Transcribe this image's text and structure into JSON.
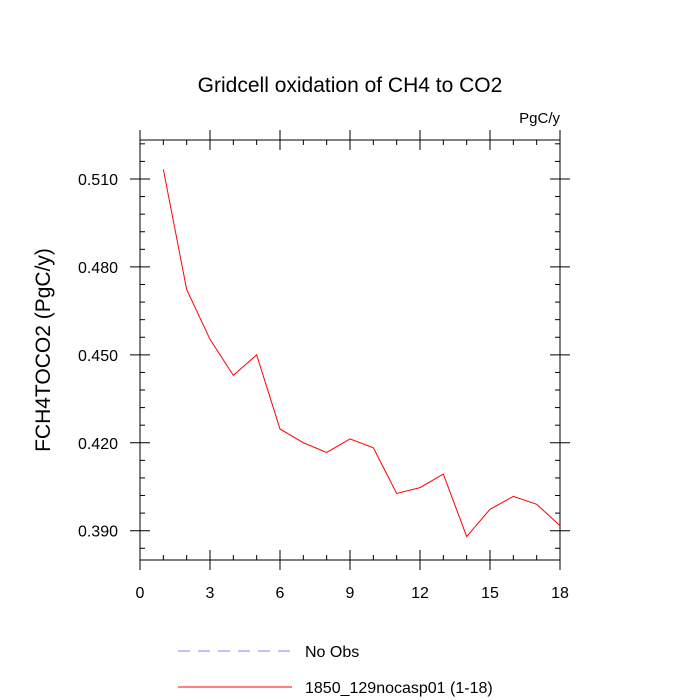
{
  "chart_data": {
    "type": "line",
    "title": "Gridcell oxidation of CH4 to CO2",
    "units_label": "PgC/y",
    "xlabel": "",
    "ylabel": "FCH4TOCO2  (PgC/y)",
    "xlim": [
      0,
      18
    ],
    "ylim": [
      0.38,
      0.5233
    ],
    "x_ticks": [
      0,
      3,
      6,
      9,
      12,
      15,
      18
    ],
    "x_tick_labels": [
      "0",
      "3",
      "6",
      "9",
      "12",
      "15",
      "18"
    ],
    "x_minor_step": 1,
    "y_ticks": [
      0.39,
      0.42,
      0.45,
      0.48,
      0.51
    ],
    "y_tick_labels": [
      "0.390",
      "0.420",
      "0.450",
      "0.480",
      "0.510"
    ],
    "y_minor_step": 0.006,
    "grid": false,
    "series": [
      {
        "name": "1850_129nocasp01 (1-18)",
        "color": "#ff0000",
        "dash": "solid",
        "x": [
          1,
          2,
          3,
          4,
          5,
          6,
          7,
          8,
          9,
          10,
          11,
          12,
          13,
          14,
          15,
          16,
          17,
          18
        ],
        "values": [
          0.5133,
          0.4723,
          0.4553,
          0.443,
          0.45,
          0.4247,
          0.42,
          0.4167,
          0.4213,
          0.4183,
          0.4027,
          0.4047,
          0.4093,
          0.388,
          0.3973,
          0.4017,
          0.399,
          0.3917
        ]
      }
    ],
    "legend": [
      {
        "label": "No Obs",
        "color": "#8080ff",
        "dash": "dashed"
      },
      {
        "label": "1850_129nocasp01 (1-18)",
        "color": "#ff0000",
        "dash": "solid"
      }
    ],
    "legend_position": "bottom"
  }
}
